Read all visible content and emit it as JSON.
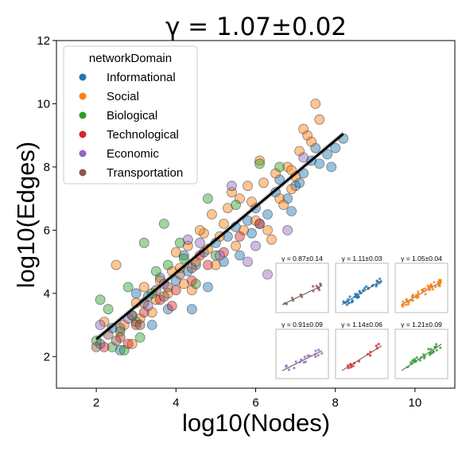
{
  "chart_data": {
    "type": "scatter",
    "title": "γ =  1.07±0.02",
    "xlabel": "log10(Nodes)",
    "ylabel": "log10(Edges)",
    "xlim": [
      1,
      11
    ],
    "ylim": [
      1,
      12
    ],
    "x_ticks": [
      "2",
      "4",
      "6",
      "8",
      "10"
    ],
    "y_ticks": [
      "2",
      "4",
      "6",
      "8",
      "10",
      "12"
    ],
    "grid": false,
    "legend": {
      "title": "networkDomain",
      "position": "top-left"
    },
    "fit_line": {
      "x": [
        2,
        8.2
      ],
      "y": [
        2.55,
        9.05
      ],
      "color": "#000000"
    },
    "series": [
      {
        "name": "Informational",
        "color": "#1f77b4",
        "points": [
          [
            2.1,
            2.4
          ],
          [
            2.4,
            2.9
          ],
          [
            2.9,
            3.3
          ],
          [
            3.3,
            3.9
          ],
          [
            3.6,
            4.5
          ],
          [
            4.0,
            4.4
          ],
          [
            4.3,
            4.7
          ],
          [
            4.5,
            4.9
          ],
          [
            4.7,
            5.3
          ],
          [
            5.0,
            5.6
          ],
          [
            5.2,
            5.0
          ],
          [
            5.5,
            6.1
          ],
          [
            5.8,
            6.3
          ],
          [
            6.0,
            6.7
          ],
          [
            6.3,
            6.5
          ],
          [
            6.5,
            7.2
          ],
          [
            6.8,
            7.0
          ],
          [
            7.0,
            7.4
          ],
          [
            7.2,
            7.8
          ],
          [
            7.4,
            8.2
          ],
          [
            7.6,
            8.1
          ],
          [
            7.8,
            8.4
          ],
          [
            8.0,
            8.6
          ],
          [
            8.2,
            8.9
          ],
          [
            7.5,
            8.6
          ],
          [
            7.9,
            8.0
          ],
          [
            6.6,
            7.6
          ],
          [
            4.8,
            4.2
          ],
          [
            3.8,
            3.5
          ],
          [
            4.2,
            5.2
          ],
          [
            5.6,
            5.2
          ],
          [
            6.1,
            6.2
          ],
          [
            2.6,
            2.2
          ],
          [
            3.0,
            4.0
          ],
          [
            4.4,
            3.5
          ],
          [
            5.3,
            5.8
          ],
          [
            6.9,
            6.6
          ],
          [
            7.1,
            7.5
          ],
          [
            5.9,
            5.9
          ],
          [
            3.4,
            3.0
          ]
        ]
      },
      {
        "name": "Social",
        "color": "#ff7f0e",
        "points": [
          [
            2.2,
            3.1
          ],
          [
            2.5,
            4.9
          ],
          [
            2.7,
            3.0
          ],
          [
            3.0,
            3.7
          ],
          [
            3.2,
            4.2
          ],
          [
            3.4,
            3.4
          ],
          [
            3.6,
            4.4
          ],
          [
            3.8,
            4.0
          ],
          [
            4.0,
            5.3
          ],
          [
            4.1,
            4.8
          ],
          [
            4.3,
            5.5
          ],
          [
            4.5,
            5.0
          ],
          [
            4.7,
            5.9
          ],
          [
            4.9,
            6.5
          ],
          [
            5.0,
            4.9
          ],
          [
            5.2,
            6.2
          ],
          [
            5.4,
            7.2
          ],
          [
            5.5,
            5.5
          ],
          [
            5.7,
            6.0
          ],
          [
            5.9,
            6.9
          ],
          [
            6.0,
            6.3
          ],
          [
            6.2,
            7.5
          ],
          [
            6.3,
            6.0
          ],
          [
            6.5,
            7.8
          ],
          [
            6.6,
            7.0
          ],
          [
            6.8,
            8.0
          ],
          [
            6.9,
            7.3
          ],
          [
            7.1,
            8.5
          ],
          [
            7.3,
            9.0
          ],
          [
            7.5,
            10.0
          ],
          [
            7.6,
            9.5
          ],
          [
            7.2,
            9.2
          ],
          [
            6.4,
            5.7
          ],
          [
            5.8,
            7.4
          ],
          [
            4.6,
            6.0
          ],
          [
            3.9,
            4.7
          ],
          [
            4.4,
            4.1
          ],
          [
            6.7,
            6.8
          ],
          [
            7.0,
            7.7
          ],
          [
            5.1,
            5.8
          ],
          [
            2.9,
            2.4
          ],
          [
            3.5,
            3.8
          ],
          [
            6.1,
            8.2
          ],
          [
            7.4,
            8.8
          ],
          [
            5.6,
            7.0
          ],
          [
            4.2,
            4.3
          ],
          [
            6.9,
            7.9
          ],
          [
            5.3,
            6.7
          ],
          [
            3.1,
            3.2
          ],
          [
            4.8,
            5.4
          ]
        ]
      },
      {
        "name": "Biological",
        "color": "#2ca02c",
        "points": [
          [
            2.0,
            2.5
          ],
          [
            2.3,
            3.5
          ],
          [
            2.6,
            2.8
          ],
          [
            2.8,
            4.2
          ],
          [
            3.0,
            3.1
          ],
          [
            3.2,
            5.6
          ],
          [
            3.4,
            4.0
          ],
          [
            3.7,
            6.2
          ],
          [
            3.8,
            4.9
          ],
          [
            4.2,
            5.1
          ],
          [
            4.5,
            4.3
          ],
          [
            4.8,
            7.0
          ],
          [
            5.0,
            5.2
          ],
          [
            5.5,
            6.8
          ],
          [
            6.1,
            8.1
          ],
          [
            6.6,
            8.0
          ],
          [
            2.7,
            2.2
          ],
          [
            2.1,
            3.8
          ],
          [
            3.5,
            4.7
          ],
          [
            4.1,
            5.6
          ],
          [
            3.1,
            2.6
          ],
          [
            2.4,
            2.3
          ]
        ]
      },
      {
        "name": "Technological",
        "color": "#d62728",
        "points": [
          [
            2.2,
            2.3
          ],
          [
            2.6,
            2.6
          ],
          [
            3.0,
            3.0
          ],
          [
            3.2,
            3.4
          ],
          [
            3.6,
            3.8
          ],
          [
            4.0,
            4.1
          ],
          [
            4.4,
            4.4
          ],
          [
            4.8,
            4.9
          ],
          [
            5.2,
            5.3
          ],
          [
            5.6,
            5.8
          ],
          [
            6.1,
            6.2
          ],
          [
            2.8,
            2.4
          ],
          [
            3.9,
            3.6
          ],
          [
            4.6,
            5.2
          ]
        ]
      },
      {
        "name": "Economic",
        "color": "#9467bd",
        "points": [
          [
            2.1,
            3.0
          ],
          [
            2.8,
            3.2
          ],
          [
            3.3,
            3.6
          ],
          [
            4.6,
            5.6
          ],
          [
            5.1,
            5.2
          ],
          [
            5.8,
            5.0
          ],
          [
            6.3,
            4.6
          ],
          [
            6.8,
            6.0
          ],
          [
            7.2,
            8.3
          ],
          [
            5.4,
            7.4
          ],
          [
            3.7,
            4.3
          ],
          [
            4.3,
            5.7
          ],
          [
            6.0,
            5.5
          ]
        ]
      },
      {
        "name": "Transportation",
        "color": "#8c564b",
        "points": [
          [
            2.0,
            2.3
          ],
          [
            2.3,
            2.7
          ],
          [
            2.6,
            2.9
          ],
          [
            2.9,
            3.3
          ],
          [
            3.2,
            3.7
          ],
          [
            3.5,
            4.1
          ],
          [
            3.8,
            4.2
          ],
          [
            4.1,
            4.6
          ],
          [
            4.4,
            4.8
          ],
          [
            2.5,
            2.5
          ],
          [
            3.1,
            3.0
          ],
          [
            3.7,
            3.9
          ]
        ]
      }
    ],
    "insets": [
      {
        "title": "γ =  0.87±0.14",
        "color": "#8c564b",
        "slope": 0.87
      },
      {
        "title": "γ =  1.11±0.03",
        "color": "#1f77b4",
        "slope": 1.11
      },
      {
        "title": "γ =  1.05±0.04",
        "color": "#ff7f0e",
        "slope": 1.05
      },
      {
        "title": "γ =  0.91±0.09",
        "color": "#9467bd",
        "slope": 0.91
      },
      {
        "title": "γ =  1.14±0.06",
        "color": "#d62728",
        "slope": 1.14
      },
      {
        "title": "γ =  1.21±0.09",
        "color": "#2ca02c",
        "slope": 1.21
      }
    ]
  }
}
